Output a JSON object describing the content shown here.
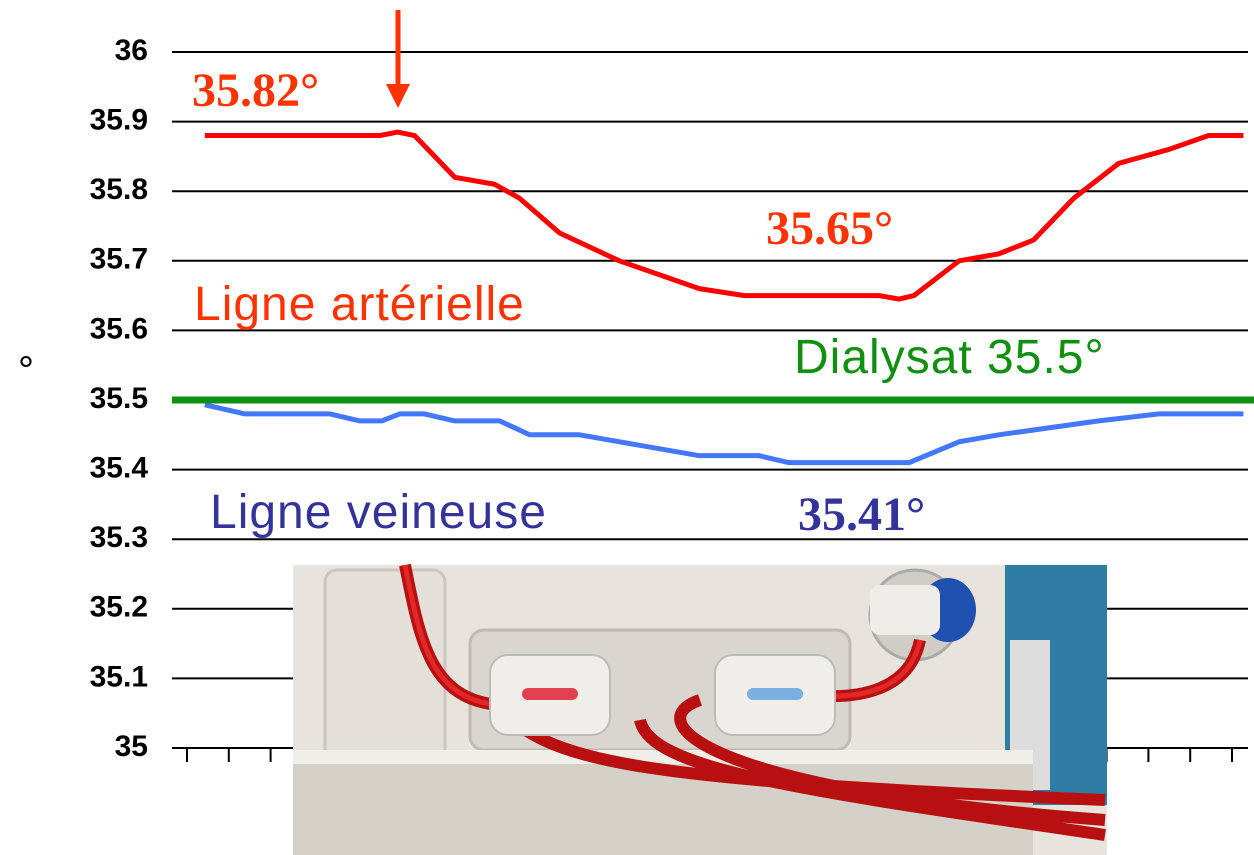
{
  "chart_data": {
    "type": "line",
    "y_label": "°",
    "ylim": [
      35,
      36
    ],
    "yticks": [
      35,
      35.1,
      35.2,
      35.3,
      35.4,
      35.5,
      35.6,
      35.7,
      35.8,
      35.9,
      36
    ],
    "xlim": [
      0,
      25.6
    ],
    "grid": true,
    "series": [
      {
        "name": "Ligne artérielle",
        "color": "#ff0000",
        "label_color": "#ff3300",
        "x": [
          0.43,
          4.65,
          5.08,
          5.49,
          6.46,
          7.42,
          8.02,
          8.99,
          10.43,
          12.36,
          13.45,
          16.7,
          17.18,
          17.54,
          18.63,
          19.59,
          20.43,
          21.4,
          22.48,
          23.69,
          24.65,
          25.49
        ],
        "values": [
          35.88,
          35.88,
          35.885,
          35.88,
          35.82,
          35.81,
          35.79,
          35.74,
          35.7,
          35.66,
          35.65,
          35.65,
          35.645,
          35.65,
          35.7,
          35.71,
          35.73,
          35.79,
          35.84,
          35.86,
          35.88,
          35.88
        ]
      },
      {
        "name": "Ligne veineuse",
        "color": "#4477ff",
        "label_color": "#333399",
        "x": [
          0.43,
          1.4,
          3.45,
          4.17,
          4.7,
          5.13,
          5.73,
          6.46,
          7.54,
          8.27,
          9.47,
          12.36,
          13.8,
          14.53,
          17.42,
          18.63,
          19.59,
          22.0,
          23.45,
          25.49
        ],
        "values": [
          35.493,
          35.48,
          35.48,
          35.47,
          35.47,
          35.48,
          35.48,
          35.47,
          35.47,
          35.45,
          35.45,
          35.42,
          35.42,
          35.41,
          35.41,
          35.44,
          35.45,
          35.47,
          35.48,
          35.48
        ]
      }
    ],
    "reference_line": {
      "label": "Dialysat 35.5°",
      "value": 35.5,
      "color": "#109010"
    },
    "annotations": [
      {
        "text": "35.82°",
        "color": "#ff3300"
      },
      {
        "text": "35.65°",
        "color": "#ff3300"
      },
      {
        "text": "35.41°",
        "color": "#333399"
      }
    ]
  }
}
